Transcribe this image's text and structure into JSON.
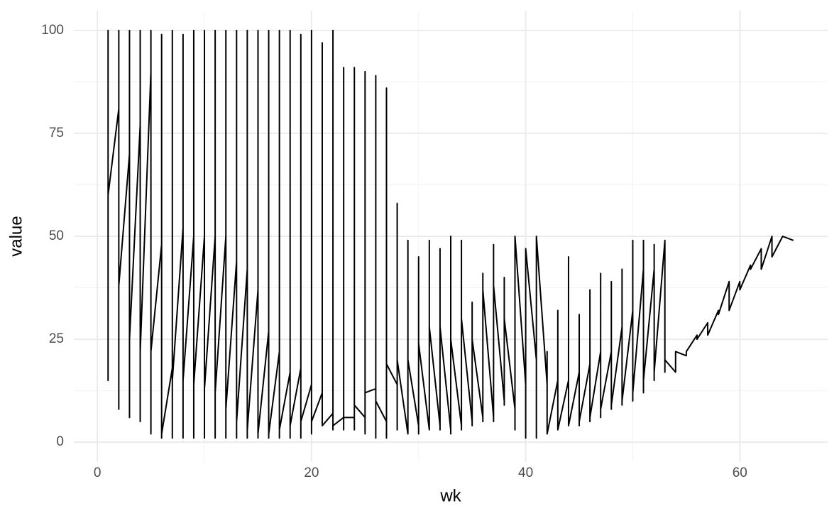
{
  "chart_data": {
    "type": "line",
    "x_label": "wk",
    "y_label": "value",
    "color": "#000000",
    "grid": true,
    "xlim": [
      -2.2,
      68.2
    ],
    "xticks": [
      0,
      20,
      40,
      60
    ],
    "ylim": [
      -4.8,
      104.8
    ],
    "yticks": [
      0,
      25,
      50,
      75,
      100
    ],
    "x": [
      1,
      1,
      1,
      1,
      2,
      2,
      2,
      2,
      3,
      3,
      3,
      3,
      4,
      4,
      4,
      4,
      5,
      5,
      5,
      5,
      6,
      6,
      6,
      6,
      7,
      7,
      7,
      7,
      8,
      8,
      8,
      8,
      9,
      9,
      9,
      9,
      10,
      10,
      10,
      10,
      11,
      11,
      11,
      11,
      12,
      12,
      12,
      12,
      13,
      13,
      13,
      13,
      14,
      14,
      14,
      14,
      15,
      15,
      15,
      15,
      16,
      16,
      16,
      16,
      17,
      17,
      17,
      17,
      18,
      18,
      18,
      18,
      19,
      19,
      19,
      19,
      20,
      20,
      20,
      20,
      21,
      21,
      21,
      21,
      22,
      22,
      22,
      22,
      23,
      23,
      23,
      23,
      24,
      24,
      24,
      24,
      25,
      25,
      25,
      25,
      26,
      26,
      26,
      26,
      27,
      27,
      27,
      27,
      28,
      28,
      28,
      28,
      29,
      29,
      29,
      29,
      30,
      30,
      30,
      30,
      31,
      31,
      31,
      31,
      32,
      32,
      32,
      32,
      33,
      33,
      33,
      33,
      34,
      34,
      34,
      34,
      35,
      35,
      35,
      35,
      36,
      36,
      36,
      36,
      37,
      37,
      37,
      37,
      38,
      38,
      38,
      38,
      39,
      39,
      39,
      39,
      40,
      40,
      40,
      40,
      41,
      41,
      41,
      41,
      42,
      42,
      42,
      42,
      43,
      43,
      43,
      43,
      44,
      44,
      44,
      44,
      45,
      45,
      45,
      45,
      46,
      46,
      46,
      46,
      47,
      47,
      47,
      47,
      48,
      48,
      48,
      48,
      49,
      49,
      49,
      49,
      50,
      50,
      50,
      50,
      51,
      51,
      51,
      51,
      52,
      52,
      52,
      52,
      53,
      53,
      53,
      53,
      54,
      54,
      55,
      55,
      56,
      56,
      57,
      57,
      58,
      58,
      59,
      59,
      60,
      60,
      61,
      61,
      62,
      62,
      63,
      63,
      64,
      65
    ],
    "values": [
      22,
      100,
      15,
      60,
      81,
      100,
      8,
      38,
      70,
      100,
      6,
      25,
      77,
      100,
      5,
      22,
      90,
      100,
      2,
      22,
      48,
      99,
      1,
      2,
      18,
      100,
      1,
      15,
      52,
      99,
      1,
      15,
      50,
      100,
      1,
      14,
      50,
      100,
      1,
      13,
      50,
      100,
      1,
      12,
      50,
      100,
      1,
      8,
      44,
      100,
      1,
      5,
      42,
      100,
      1,
      3,
      37,
      100,
      1,
      2,
      27,
      100,
      1,
      2,
      22,
      100,
      1,
      3,
      17,
      100,
      1,
      4,
      18,
      99,
      1,
      5,
      14,
      100,
      2,
      5,
      12,
      97,
      4,
      4,
      7,
      100,
      3,
      4,
      6,
      91,
      3,
      6,
      6,
      91,
      3,
      9,
      6,
      90,
      2,
      12,
      13,
      89,
      1,
      10,
      5,
      86,
      1,
      19,
      14,
      58,
      3,
      20,
      2,
      49,
      2,
      20,
      4,
      45,
      2,
      24,
      3,
      49,
      3,
      28,
      4,
      47,
      3,
      28,
      3,
      50,
      2,
      25,
      4,
      49,
      3,
      30,
      5,
      34,
      4,
      25,
      6,
      41,
      5,
      37,
      6,
      48,
      5,
      38,
      10,
      40,
      9,
      30,
      8,
      50,
      3,
      50,
      14,
      47,
      1,
      47,
      20,
      50,
      1,
      50,
      14,
      22,
      2,
      2,
      15,
      32,
      3,
      3,
      15,
      45,
      4,
      4,
      17,
      31,
      4,
      5,
      19,
      37,
      5,
      6,
      22,
      41,
      6,
      8,
      22,
      39,
      8,
      9,
      28,
      42,
      9,
      10,
      32,
      49,
      10,
      12,
      42,
      49,
      12,
      15,
      42,
      48,
      15,
      17,
      49,
      49,
      17,
      20,
      17,
      22,
      21,
      22,
      26,
      25,
      29,
      26,
      32,
      31,
      39,
      32,
      39,
      37,
      43,
      42,
      47,
      42,
      50,
      45,
      50,
      49
    ]
  }
}
